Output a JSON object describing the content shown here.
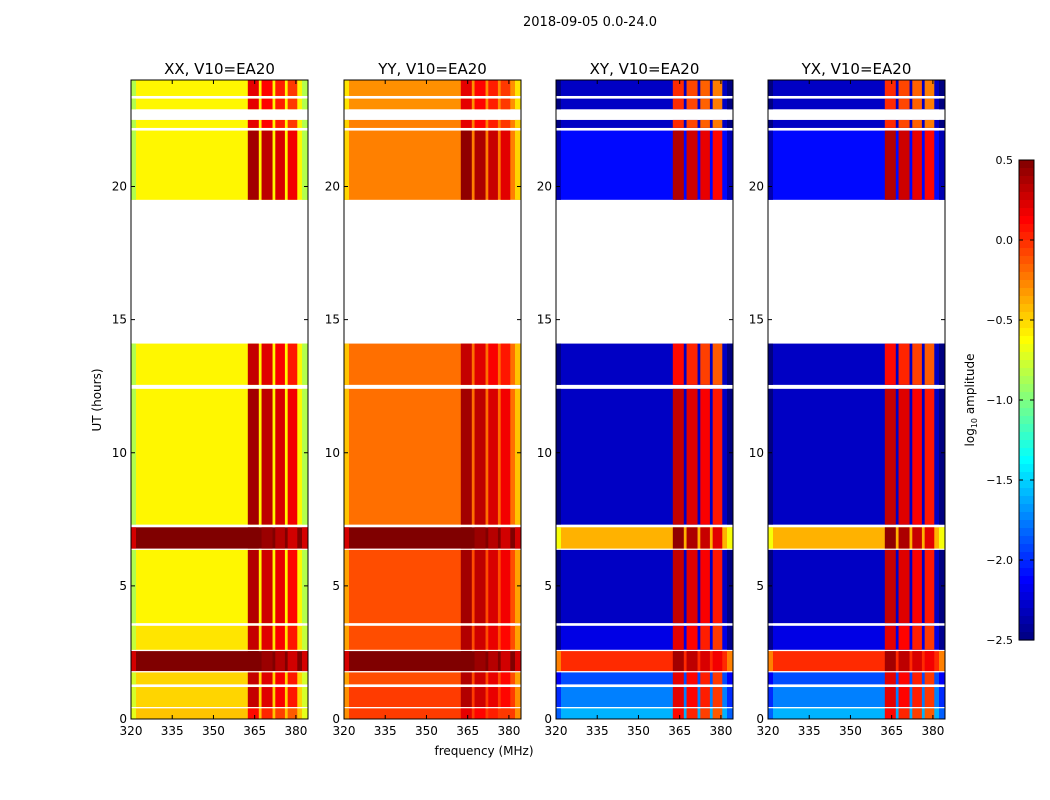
{
  "chart_data": {
    "type": "heatmap",
    "title": "2018-09-05 0.0-24.0",
    "xlabel": "frequency (MHz)",
    "ylabel": "UT (hours)",
    "xlim": [
      320,
      384.4
    ],
    "ylim": [
      0,
      24
    ],
    "x_ticks": [
      320,
      335,
      350,
      365,
      380
    ],
    "x_tick_labels": [
      "320",
      "335",
      "350",
      "365",
      "380"
    ],
    "y_ticks": [
      0,
      5,
      10,
      15,
      20
    ],
    "y_tick_labels": [
      "0",
      "5",
      "10",
      "15",
      "20"
    ],
    "colorbar": {
      "label": "log10 amplitude",
      "label_main": "log",
      "label_sub": "10",
      "label_rest": " amplitude",
      "range": [
        -2.5,
        0.5
      ],
      "ticks": [
        0.5,
        0.0,
        -0.5,
        -1.0,
        -1.5,
        -2.0,
        -2.5
      ],
      "tick_labels": [
        "0.5",
        "0.0",
        "−0.5",
        "−1.0",
        "−1.5",
        "−2.0",
        "−2.5"
      ],
      "colormap": "jet"
    },
    "rfi_columns_mhz": [
      [
        362.5,
        366.5
      ],
      [
        367.5,
        371.5
      ],
      [
        372.5,
        376
      ],
      [
        377,
        380.5
      ]
    ],
    "time_rows_hours": [
      [
        0.0,
        0.4
      ],
      [
        0.45,
        1.2
      ],
      [
        1.3,
        1.75
      ],
      [
        1.8,
        2.55
      ],
      [
        2.6,
        3.5
      ],
      [
        3.6,
        6.35
      ],
      [
        6.4,
        7.2
      ],
      [
        7.3,
        12.4
      ],
      [
        12.55,
        14.1
      ],
      [
        19.5,
        22.1
      ],
      [
        22.2,
        22.5
      ],
      [
        22.9,
        23.3
      ],
      [
        23.4,
        24.0
      ]
    ],
    "panels": [
      {
        "title": "XX, V10=EA20",
        "background": [
          -0.45,
          -0.5,
          -0.5,
          0.5,
          -0.55,
          -0.6,
          0.5,
          -0.6,
          -0.6,
          -0.6,
          -0.6,
          -0.6,
          -0.6
        ],
        "rfi": [
          0.1,
          0.3,
          0.3,
          0.5,
          0.3,
          0.35,
          0.5,
          0.4,
          0.3,
          0.4,
          0.2,
          0.2,
          0.2
        ]
      },
      {
        "title": "YY, V10=EA20",
        "background": [
          -0.05,
          -0.05,
          -0.1,
          0.5,
          -0.1,
          -0.1,
          0.5,
          -0.2,
          -0.2,
          -0.25,
          -0.25,
          -0.3,
          -0.3
        ],
        "rfi": [
          0.2,
          0.35,
          0.35,
          0.5,
          0.35,
          0.4,
          0.5,
          0.4,
          0.3,
          0.45,
          0.2,
          0.2,
          0.2
        ]
      },
      {
        "title": "XY, V10=EA20",
        "background": [
          -1.6,
          -1.75,
          -1.9,
          0.0,
          -2.2,
          -2.3,
          -0.4,
          -2.3,
          -2.3,
          -2.1,
          -2.3,
          -2.3,
          -2.3
        ],
        "rfi": [
          0.1,
          0.2,
          0.2,
          0.4,
          0.2,
          0.3,
          0.45,
          0.3,
          0.1,
          0.35,
          0.0,
          0.0,
          0.0
        ]
      },
      {
        "title": "YX, V10=EA20",
        "background": [
          -1.6,
          -1.75,
          -1.9,
          0.0,
          -2.2,
          -2.3,
          -0.4,
          -2.3,
          -2.3,
          -2.1,
          -2.3,
          -2.3,
          -2.3
        ],
        "rfi": [
          0.1,
          0.2,
          0.2,
          0.4,
          0.2,
          0.3,
          0.45,
          0.3,
          0.1,
          0.35,
          0.0,
          0.0,
          0.0
        ]
      }
    ]
  }
}
